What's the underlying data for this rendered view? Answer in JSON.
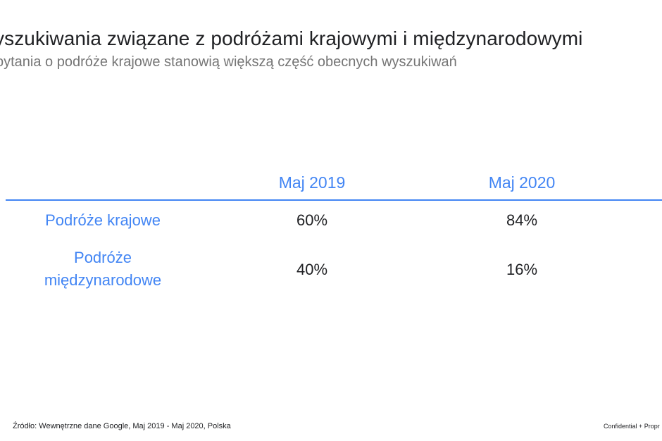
{
  "slide": {
    "title": "yszukiwania związane z podróżami krajowymi i międzynarodowymi",
    "subtitle": "pytania o podróże krajowe stanowią większą część obecnych wyszukiwań"
  },
  "table": {
    "columns": [
      "Maj 2019",
      "Maj 2020"
    ],
    "rows": [
      {
        "label": "Podróże krajowe",
        "values": [
          "60%",
          "84%"
        ]
      },
      {
        "label_line1": "Podróże",
        "label_line2": "międzynarodowe",
        "values": [
          "40%",
          "16%"
        ]
      }
    ]
  },
  "footer": {
    "source": "Źródło: Wewnętrzne dane Google, Maj  2019 - Maj 2020, Polska",
    "confidential": "Confidential + Propr"
  },
  "colors": {
    "accent": "#4285f4",
    "text": "#202124",
    "subtitle": "#757575"
  }
}
